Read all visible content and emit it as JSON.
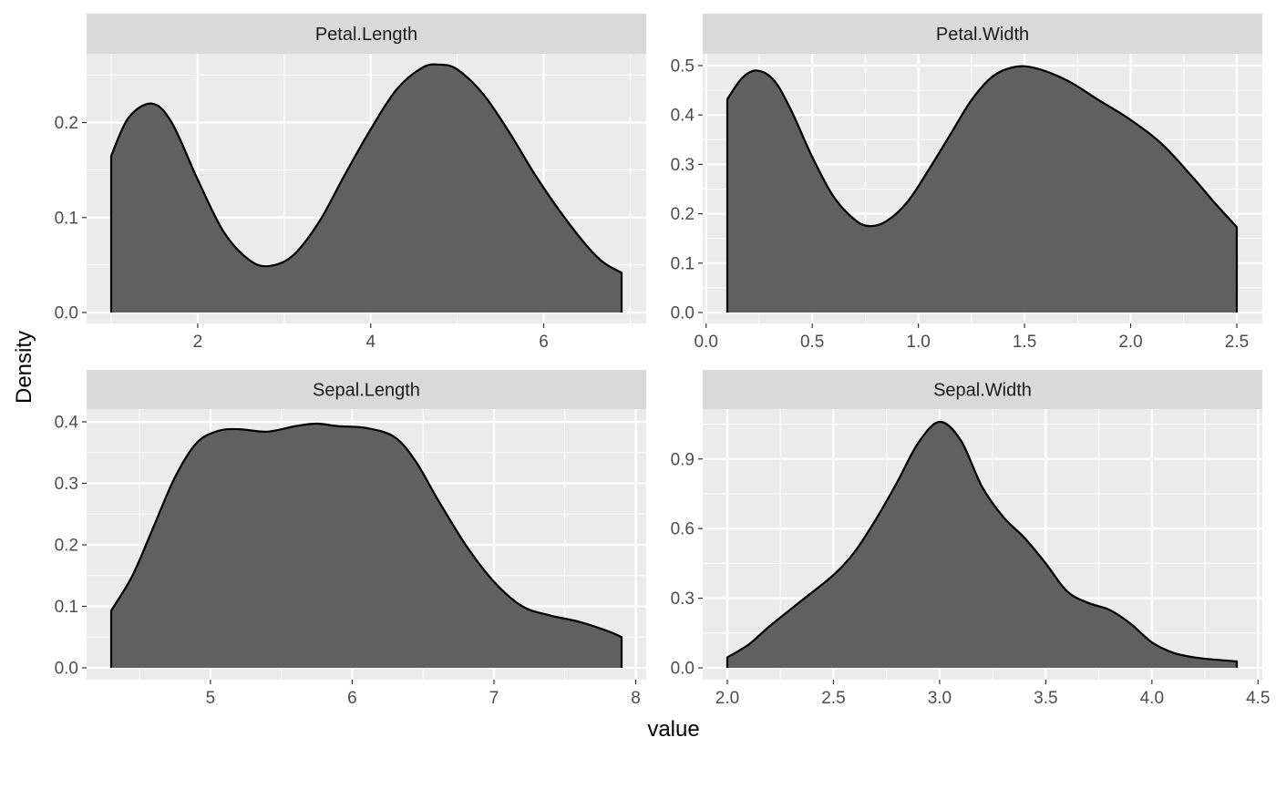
{
  "chart_data": {
    "type": "area",
    "ylabel": "Density",
    "xlabel": "value",
    "grid": true,
    "colors": {
      "panel_background": "#EBEBEB",
      "strip_background": "#D9D9D9",
      "grid_line": "#FFFFFF",
      "fill": "#595959",
      "outline": "#000000"
    },
    "facets": [
      {
        "label": "Petal.Length",
        "xlim": [
          1.0,
          6.9
        ],
        "ylim": [
          0,
          0.26
        ],
        "x_ticks": [
          2,
          4,
          6
        ],
        "x_tick_labels": [
          "2",
          "4",
          "6"
        ],
        "y_ticks": [
          0.0,
          0.1,
          0.2
        ],
        "y_tick_labels": [
          "0.0",
          "0.1",
          "0.2"
        ],
        "x": [
          1.0,
          1.2,
          1.47,
          1.7,
          2.0,
          2.3,
          2.6,
          2.83,
          3.1,
          3.4,
          3.7,
          4.0,
          4.3,
          4.6,
          4.8,
          5.0,
          5.3,
          5.6,
          5.9,
          6.2,
          6.5,
          6.7,
          6.9
        ],
        "y": [
          0.165,
          0.205,
          0.22,
          0.2,
          0.14,
          0.085,
          0.055,
          0.049,
          0.06,
          0.095,
          0.145,
          0.193,
          0.235,
          0.258,
          0.261,
          0.256,
          0.23,
          0.19,
          0.145,
          0.105,
          0.07,
          0.052,
          0.042
        ]
      },
      {
        "label": "Petal.Width",
        "xlim": [
          0.1,
          2.5
        ],
        "ylim": [
          0,
          0.5
        ],
        "x_ticks": [
          0.0,
          0.5,
          1.0,
          1.5,
          2.0,
          2.5
        ],
        "x_tick_labels": [
          "0.0",
          "0.5",
          "1.0",
          "1.5",
          "2.0",
          "2.5"
        ],
        "y_ticks": [
          0.0,
          0.1,
          0.2,
          0.3,
          0.4,
          0.5
        ],
        "y_tick_labels": [
          "0.0",
          "0.1",
          "0.2",
          "0.3",
          "0.4",
          "0.5"
        ],
        "x": [
          0.1,
          0.17,
          0.24,
          0.32,
          0.4,
          0.5,
          0.6,
          0.7,
          0.77,
          0.85,
          0.95,
          1.05,
          1.15,
          1.25,
          1.35,
          1.45,
          1.55,
          1.7,
          1.85,
          2.0,
          2.15,
          2.3,
          2.4,
          2.5
        ],
        "y": [
          0.432,
          0.475,
          0.49,
          0.47,
          0.41,
          0.315,
          0.235,
          0.188,
          0.175,
          0.185,
          0.225,
          0.29,
          0.36,
          0.43,
          0.478,
          0.497,
          0.495,
          0.47,
          0.43,
          0.39,
          0.34,
          0.27,
          0.22,
          0.173
        ]
      },
      {
        "label": "Sepal.Length",
        "xlim": [
          4.3,
          7.9
        ],
        "ylim": [
          0,
          0.4
        ],
        "x_ticks": [
          5,
          6,
          7,
          8
        ],
        "x_tick_labels": [
          "5",
          "6",
          "7",
          "8"
        ],
        "y_ticks": [
          0.0,
          0.1,
          0.2,
          0.3,
          0.4
        ],
        "y_tick_labels": [
          "0.0",
          "0.1",
          "0.2",
          "0.3",
          "0.4"
        ],
        "x": [
          4.3,
          4.45,
          4.6,
          4.75,
          4.9,
          5.05,
          5.2,
          5.4,
          5.6,
          5.75,
          5.9,
          6.1,
          6.3,
          6.45,
          6.6,
          6.8,
          7.0,
          7.2,
          7.4,
          7.6,
          7.8,
          7.9
        ],
        "y": [
          0.093,
          0.15,
          0.23,
          0.31,
          0.365,
          0.385,
          0.388,
          0.384,
          0.393,
          0.397,
          0.393,
          0.39,
          0.375,
          0.335,
          0.275,
          0.2,
          0.14,
          0.1,
          0.085,
          0.075,
          0.06,
          0.05
        ]
      },
      {
        "label": "Sepal.Width",
        "xlim": [
          2.0,
          4.4
        ],
        "ylim": [
          0,
          1.06
        ],
        "x_ticks": [
          2.0,
          2.5,
          3.0,
          3.5,
          4.0,
          4.5
        ],
        "x_tick_labels": [
          "2.0",
          "2.5",
          "3.0",
          "3.5",
          "4.0",
          "4.5"
        ],
        "y_ticks": [
          0.0,
          0.3,
          0.6,
          0.9
        ],
        "y_tick_labels": [
          "0.0",
          "0.3",
          "0.6",
          "0.9"
        ],
        "x": [
          2.0,
          2.1,
          2.2,
          2.35,
          2.5,
          2.6,
          2.7,
          2.8,
          2.9,
          3.0,
          3.1,
          3.2,
          3.3,
          3.4,
          3.5,
          3.6,
          3.7,
          3.8,
          3.9,
          4.0,
          4.1,
          4.2,
          4.3,
          4.4
        ],
        "y": [
          0.045,
          0.1,
          0.18,
          0.29,
          0.4,
          0.5,
          0.64,
          0.8,
          0.97,
          1.06,
          0.98,
          0.78,
          0.65,
          0.56,
          0.45,
          0.33,
          0.28,
          0.25,
          0.19,
          0.11,
          0.065,
          0.045,
          0.035,
          0.028
        ]
      }
    ]
  }
}
